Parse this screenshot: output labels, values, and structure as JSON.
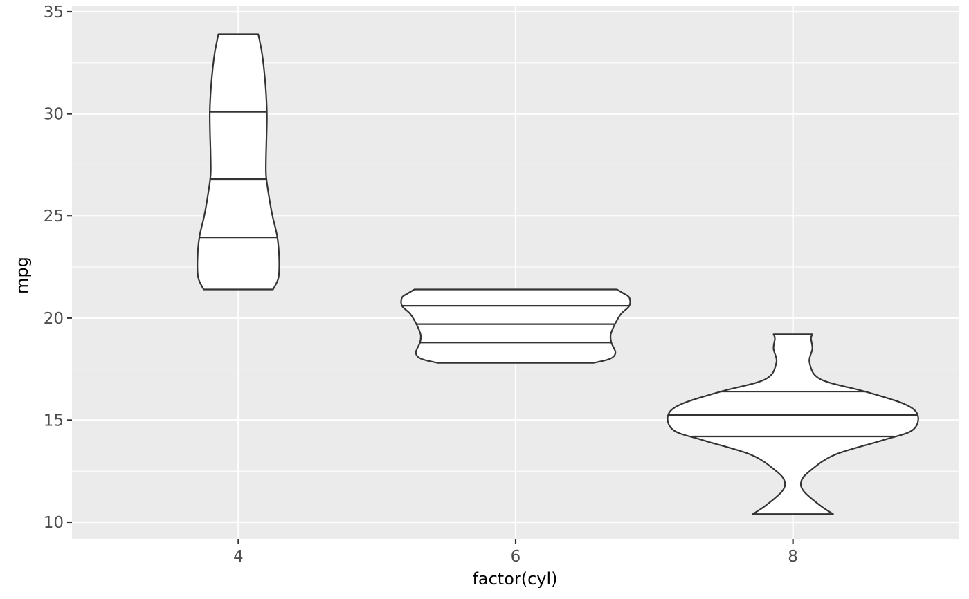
{
  "chart_data": {
    "type": "violin",
    "xlabel": "factor(cyl)",
    "ylabel": "mpg",
    "categories": [
      "4",
      "6",
      "8"
    ],
    "ylim": [
      9.2,
      35
    ],
    "y_ticks": [
      10,
      15,
      20,
      25,
      30,
      35
    ],
    "y_tick_labels": [
      "10",
      "15",
      "20",
      "25",
      "30",
      "35"
    ],
    "y_minor_ticks": [
      12.5,
      17.5,
      22.5,
      27.5,
      32.5
    ],
    "grid": true,
    "violins": [
      {
        "category": "4",
        "ymin": 21.4,
        "ymax": 33.9,
        "quantiles": [
          23.95,
          26.8,
          30.1
        ],
        "profile": [
          {
            "y": 21.4,
            "w": 0.125
          },
          {
            "y": 22.0,
            "w": 0.145
          },
          {
            "y": 23.0,
            "w": 0.147
          },
          {
            "y": 24.0,
            "w": 0.14
          },
          {
            "y": 25.0,
            "w": 0.123
          },
          {
            "y": 26.0,
            "w": 0.11
          },
          {
            "y": 27.0,
            "w": 0.1
          },
          {
            "y": 28.0,
            "w": 0.1
          },
          {
            "y": 29.0,
            "w": 0.102
          },
          {
            "y": 30.0,
            "w": 0.103
          },
          {
            "y": 31.0,
            "w": 0.1
          },
          {
            "y": 32.0,
            "w": 0.094
          },
          {
            "y": 33.0,
            "w": 0.085
          },
          {
            "y": 33.9,
            "w": 0.072
          }
        ]
      },
      {
        "category": "6",
        "ymin": 17.8,
        "ymax": 21.4,
        "quantiles": [
          18.8,
          19.7,
          20.6
        ],
        "profile": [
          {
            "y": 17.8,
            "w": 0.28
          },
          {
            "y": 18.0,
            "w": 0.34
          },
          {
            "y": 18.3,
            "w": 0.36
          },
          {
            "y": 18.8,
            "w": 0.345
          },
          {
            "y": 19.2,
            "w": 0.343
          },
          {
            "y": 19.7,
            "w": 0.358
          },
          {
            "y": 20.2,
            "w": 0.38
          },
          {
            "y": 20.6,
            "w": 0.41
          },
          {
            "y": 21.0,
            "w": 0.41
          },
          {
            "y": 21.2,
            "w": 0.39
          },
          {
            "y": 21.4,
            "w": 0.365
          }
        ]
      },
      {
        "category": "8",
        "ymin": 10.4,
        "ymax": 19.2,
        "quantiles": [
          14.2,
          15.25,
          16.4
        ],
        "profile": [
          {
            "y": 10.4,
            "w": 0.145
          },
          {
            "y": 10.8,
            "w": 0.1
          },
          {
            "y": 11.5,
            "w": 0.04
          },
          {
            "y": 12.0,
            "w": 0.03
          },
          {
            "y": 12.5,
            "w": 0.06
          },
          {
            "y": 13.3,
            "w": 0.15
          },
          {
            "y": 14.0,
            "w": 0.32
          },
          {
            "y": 14.5,
            "w": 0.43
          },
          {
            "y": 15.25,
            "w": 0.45
          },
          {
            "y": 15.8,
            "w": 0.4
          },
          {
            "y": 16.4,
            "w": 0.26
          },
          {
            "y": 17.0,
            "w": 0.1
          },
          {
            "y": 17.8,
            "w": 0.06
          },
          {
            "y": 18.5,
            "w": 0.07
          },
          {
            "y": 19.0,
            "w": 0.065
          },
          {
            "y": 19.2,
            "w": 0.07
          }
        ]
      }
    ]
  }
}
